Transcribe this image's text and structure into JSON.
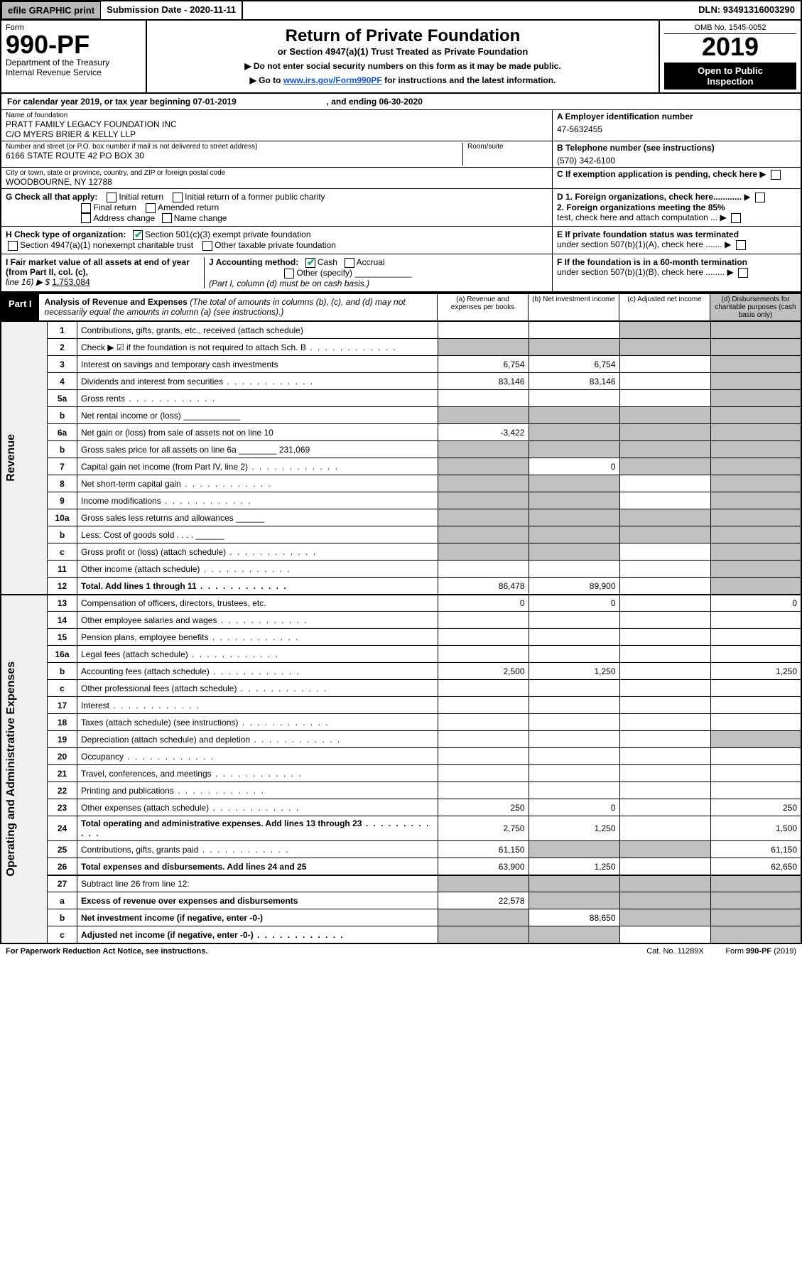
{
  "top": {
    "efile": "efile GRAPHIC print",
    "submission_label": "Submission Date - 2020-11-11",
    "dln_label": "DLN: 93491316003290"
  },
  "hdr": {
    "form_word": "Form",
    "form_no": "990-PF",
    "dept1": "Department of the Treasury",
    "dept2": "Internal Revenue Service",
    "title": "Return of Private Foundation",
    "subtitle": "or Section 4947(a)(1) Trust Treated as Private Foundation",
    "note1": "▶ Do not enter social security numbers on this form as it may be made public.",
    "note2_pre": "▶ Go to ",
    "note2_link": "www.irs.gov/Form990PF",
    "note2_post": " for instructions and the latest information.",
    "omb": "OMB No. 1545-0052",
    "year": "2019",
    "ribbon1": "Open to Public",
    "ribbon2": "Inspection"
  },
  "cal": {
    "pre": "For calendar year 2019, or tax year beginning ",
    "begin": "07-01-2019",
    "mid": " , and ending ",
    "end": "06-30-2020"
  },
  "info": {
    "name_lbl": "Name of foundation",
    "name1": "PRATT FAMILY LEGACY FOUNDATION INC",
    "name2": "C/O MYERS BRIER & KELLY LLP",
    "addr_lbl": "Number and street (or P.O. box number if mail is not delivered to street address)",
    "addr": "6166 STATE ROUTE 42 PO BOX 30",
    "room_lbl": "Room/suite",
    "city_lbl": "City or town, state or province, country, and ZIP or foreign postal code",
    "city": "WOODBOURNE, NY  12788",
    "a_lbl": "A Employer identification number",
    "a_val": "47-5632455",
    "b_lbl": "B Telephone number (see instructions)",
    "b_val": "(570) 342-6100",
    "c_lbl": "C If exemption application is pending, check here"
  },
  "g": {
    "lbl": "G Check all that apply:",
    "o1": "Initial return",
    "o2": "Initial return of a former public charity",
    "o3": "Final return",
    "o4": "Amended return",
    "o5": "Address change",
    "o6": "Name change"
  },
  "d": {
    "d1": "D 1. Foreign organizations, check here............",
    "d2a": "2. Foreign organizations meeting the 85%",
    "d2b": "test, check here and attach computation ..."
  },
  "h": {
    "lbl": "H Check type of organization:",
    "o1": "Section 501(c)(3) exempt private foundation",
    "o2": "Section 4947(a)(1) nonexempt charitable trust",
    "o3": "Other taxable private foundation"
  },
  "e": {
    "e1": "E  If private foundation status was terminated",
    "e2": "under section 507(b)(1)(A), check here ......."
  },
  "i": {
    "lbl": "I Fair market value of all assets at end of year (from Part II, col. (c),",
    "ln": "line 16) ▶ $",
    "val": "1,753,084"
  },
  "j": {
    "lbl": "J Accounting method:",
    "o1": "Cash",
    "o2": "Accrual",
    "o3": "Other (specify)",
    "sub": "(Part I, column (d) must be on cash basis.)"
  },
  "f": {
    "f1": "F  If the foundation is in a 60-month termination",
    "f2": "under section 507(b)(1)(B), check here ........"
  },
  "part1": {
    "tag": "Part I",
    "title": "Analysis of Revenue and Expenses",
    "sub": " (The total of amounts in columns (b), (c), and (d) may not necessarily equal the amounts in column (a) (see instructions).)",
    "col_a": "(a)   Revenue and expenses per books",
    "col_b": "(b)  Net investment income",
    "col_c": "(c)  Adjusted net income",
    "col_d": "(d)  Disbursements for charitable purposes (cash basis only)"
  },
  "side_rev": "Revenue",
  "side_exp": "Operating and Administrative Expenses",
  "rows": [
    {
      "n": "1",
      "d": "Contributions, gifts, grants, etc., received (attach schedule)",
      "a": "",
      "b": "",
      "c": "sh",
      "dv": "sh"
    },
    {
      "n": "2",
      "d": "Check ▶ ☑ if the foundation is not required to attach Sch. B",
      "a": "sh",
      "b": "sh",
      "c": "sh",
      "dv": "sh",
      "dots": 1
    },
    {
      "n": "3",
      "d": "Interest on savings and temporary cash investments",
      "a": "6,754",
      "b": "6,754",
      "c": "",
      "dv": "sh"
    },
    {
      "n": "4",
      "d": "Dividends and interest from securities",
      "a": "83,146",
      "b": "83,146",
      "c": "",
      "dv": "sh",
      "dots": 1
    },
    {
      "n": "5a",
      "d": "Gross rents",
      "a": "",
      "b": "",
      "c": "",
      "dv": "sh",
      "dots": 1
    },
    {
      "n": "b",
      "d": "Net rental income or (loss)  ____________",
      "a": "sh",
      "b": "sh",
      "c": "sh",
      "dv": "sh"
    },
    {
      "n": "6a",
      "d": "Net gain or (loss) from sale of assets not on line 10",
      "a": "-3,422",
      "b": "sh",
      "c": "sh",
      "dv": "sh"
    },
    {
      "n": "b",
      "d": "Gross sales price for all assets on line 6a ________ 231,069",
      "a": "sh",
      "b": "sh",
      "c": "sh",
      "dv": "sh"
    },
    {
      "n": "7",
      "d": "Capital gain net income (from Part IV, line 2)",
      "a": "sh",
      "b": "0",
      "c": "sh",
      "dv": "sh",
      "dots": 1
    },
    {
      "n": "8",
      "d": "Net short-term capital gain",
      "a": "sh",
      "b": "sh",
      "c": "",
      "dv": "sh",
      "dots": 1
    },
    {
      "n": "9",
      "d": "Income modifications",
      "a": "sh",
      "b": "sh",
      "c": "",
      "dv": "sh",
      "dots": 1
    },
    {
      "n": "10a",
      "d": "Gross sales less returns and allowances  ______",
      "a": "sh",
      "b": "sh",
      "c": "sh",
      "dv": "sh"
    },
    {
      "n": "b",
      "d": "Less: Cost of goods sold     .   .   .   .   ______",
      "a": "sh",
      "b": "sh",
      "c": "sh",
      "dv": "sh"
    },
    {
      "n": "c",
      "d": "Gross profit or (loss) (attach schedule)",
      "a": "sh",
      "b": "sh",
      "c": "",
      "dv": "sh",
      "dots": 1
    },
    {
      "n": "11",
      "d": "Other income (attach schedule)",
      "a": "",
      "b": "",
      "c": "",
      "dv": "sh",
      "dots": 1
    },
    {
      "n": "12",
      "d": "Total. Add lines 1 through 11",
      "a": "86,478",
      "b": "89,900",
      "c": "",
      "dv": "sh",
      "bold": 1,
      "dots": 1
    },
    {
      "n": "13",
      "d": "Compensation of officers, directors, trustees, etc.",
      "a": "0",
      "b": "0",
      "c": "",
      "dv": "0"
    },
    {
      "n": "14",
      "d": "Other employee salaries and wages",
      "a": "",
      "b": "",
      "c": "",
      "dv": "",
      "dots": 1
    },
    {
      "n": "15",
      "d": "Pension plans, employee benefits",
      "a": "",
      "b": "",
      "c": "",
      "dv": "",
      "dots": 1
    },
    {
      "n": "16a",
      "d": "Legal fees (attach schedule)",
      "a": "",
      "b": "",
      "c": "",
      "dv": "",
      "dots": 1
    },
    {
      "n": "b",
      "d": "Accounting fees (attach schedule)",
      "a": "2,500",
      "b": "1,250",
      "c": "",
      "dv": "1,250",
      "dots": 1
    },
    {
      "n": "c",
      "d": "Other professional fees (attach schedule)",
      "a": "",
      "b": "",
      "c": "",
      "dv": "",
      "dots": 1
    },
    {
      "n": "17",
      "d": "Interest",
      "a": "",
      "b": "",
      "c": "",
      "dv": "",
      "dots": 1
    },
    {
      "n": "18",
      "d": "Taxes (attach schedule) (see instructions)",
      "a": "",
      "b": "",
      "c": "",
      "dv": "",
      "dots": 1
    },
    {
      "n": "19",
      "d": "Depreciation (attach schedule) and depletion",
      "a": "",
      "b": "",
      "c": "",
      "dv": "sh",
      "dots": 1
    },
    {
      "n": "20",
      "d": "Occupancy",
      "a": "",
      "b": "",
      "c": "",
      "dv": "",
      "dots": 1
    },
    {
      "n": "21",
      "d": "Travel, conferences, and meetings",
      "a": "",
      "b": "",
      "c": "",
      "dv": "",
      "dots": 1
    },
    {
      "n": "22",
      "d": "Printing and publications",
      "a": "",
      "b": "",
      "c": "",
      "dv": "",
      "dots": 1
    },
    {
      "n": "23",
      "d": "Other expenses (attach schedule)",
      "a": "250",
      "b": "0",
      "c": "",
      "dv": "250",
      "dots": 1
    },
    {
      "n": "24",
      "d": "Total operating and administrative expenses. Add lines 13 through 23",
      "a": "2,750",
      "b": "1,250",
      "c": "",
      "dv": "1,500",
      "bold": 1,
      "dots": 1
    },
    {
      "n": "25",
      "d": "Contributions, gifts, grants paid",
      "a": "61,150",
      "b": "sh",
      "c": "sh",
      "dv": "61,150",
      "dots": 1
    },
    {
      "n": "26",
      "d": "Total expenses and disbursements. Add lines 24 and 25",
      "a": "63,900",
      "b": "1,250",
      "c": "",
      "dv": "62,650",
      "bold": 1
    },
    {
      "n": "27",
      "d": "Subtract line 26 from line 12:",
      "a": "sh",
      "b": "sh",
      "c": "sh",
      "dv": "sh"
    },
    {
      "n": "a",
      "d": "Excess of revenue over expenses and disbursements",
      "a": "22,578",
      "b": "sh",
      "c": "sh",
      "dv": "sh",
      "bold": 1
    },
    {
      "n": "b",
      "d": "Net investment income (if negative, enter -0-)",
      "a": "sh",
      "b": "88,650",
      "c": "sh",
      "dv": "sh",
      "bold": 1
    },
    {
      "n": "c",
      "d": "Adjusted net income (if negative, enter -0-)",
      "a": "sh",
      "b": "sh",
      "c": "",
      "dv": "sh",
      "bold": 1,
      "dots": 1
    }
  ],
  "foot": {
    "l": "For Paperwork Reduction Act Notice, see instructions.",
    "m": "Cat. No. 11289X",
    "r": "Form 990-PF (2019)"
  },
  "style": {
    "col_a_w": 128,
    "col_b_w": 128,
    "col_c_w": 128,
    "col_d_w": 128,
    "side_w": 28,
    "ln_w": 42,
    "shade": "#c0c0c0"
  }
}
